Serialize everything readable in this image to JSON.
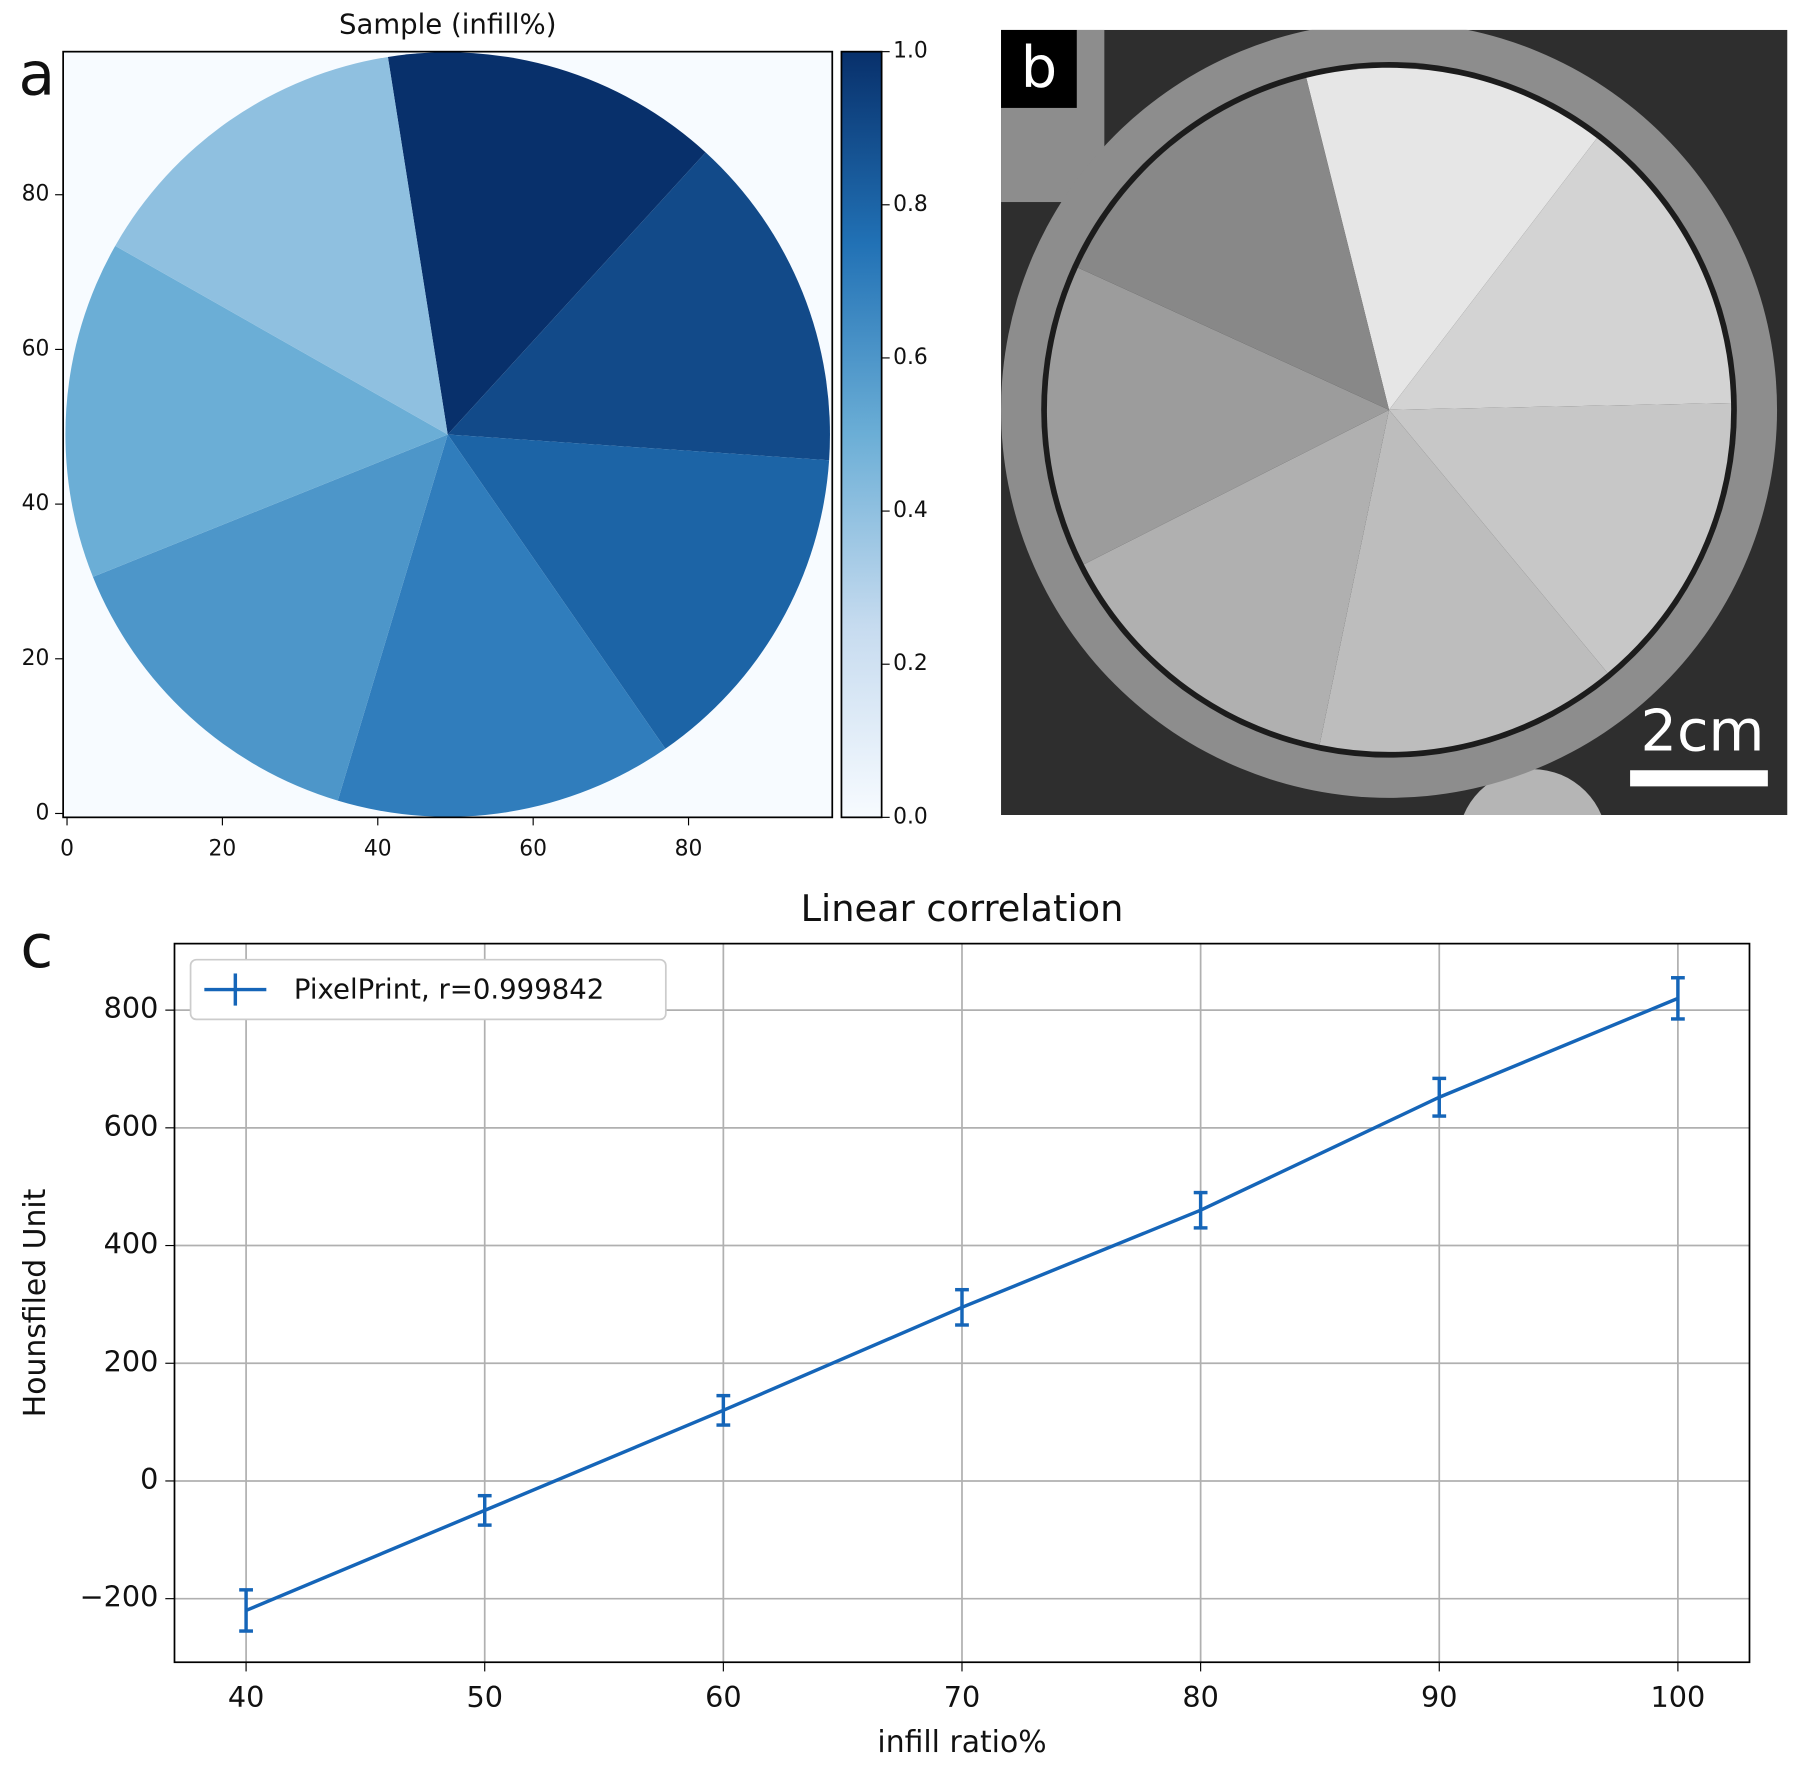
{
  "panel_labels": [
    "a",
    "b",
    "c"
  ],
  "image": {
    "scale_bar_label": "2cm"
  },
  "chart_data": [
    {
      "type": "sector-map",
      "title": "Sample (infill%)",
      "values": [
        1.0,
        0.9,
        0.8,
        0.7,
        0.6,
        0.5,
        0.4
      ],
      "xlim": [
        -0.5,
        98.5
      ],
      "ylim": [
        -0.5,
        98.5
      ],
      "xticks": [
        0,
        20,
        40,
        60,
        80
      ],
      "yticks": [
        0,
        20,
        40,
        60,
        80
      ],
      "cmap": [
        "#f7fbff",
        "#c6dbef",
        "#6baed6",
        "#2171b5",
        "#08306b"
      ],
      "clim": [
        0,
        1
      ],
      "cticks": [
        {
          "value": 0,
          "label": "0.0"
        },
        0.2,
        0.4,
        0.6,
        0.8,
        {
          "value": 1,
          "label": "1.0"
        }
      ]
    },
    {
      "type": "line",
      "title": "Linear correlation",
      "x_label": "infill ratio%",
      "y_label": "Hounsfiled Unit",
      "x": [
        40,
        50,
        60,
        70,
        80,
        90,
        100
      ],
      "series": [
        {
          "name": "PixelPrint, r=0.999842",
          "color": "#1565b8",
          "values": [
            -220,
            -50,
            120,
            295,
            460,
            652,
            820
          ],
          "errors": [
            35,
            25,
            25,
            30,
            30,
            32,
            35
          ]
        }
      ],
      "xlim": [
        37,
        103
      ],
      "ylim": [
        -308,
        913
      ],
      "xticks": [
        40,
        50,
        60,
        70,
        80,
        90,
        100
      ],
      "yticks": [
        {
          "value": -200,
          "label": "−200"
        },
        0,
        200,
        400,
        600,
        800
      ],
      "grid": true,
      "legend": "upper left"
    }
  ]
}
